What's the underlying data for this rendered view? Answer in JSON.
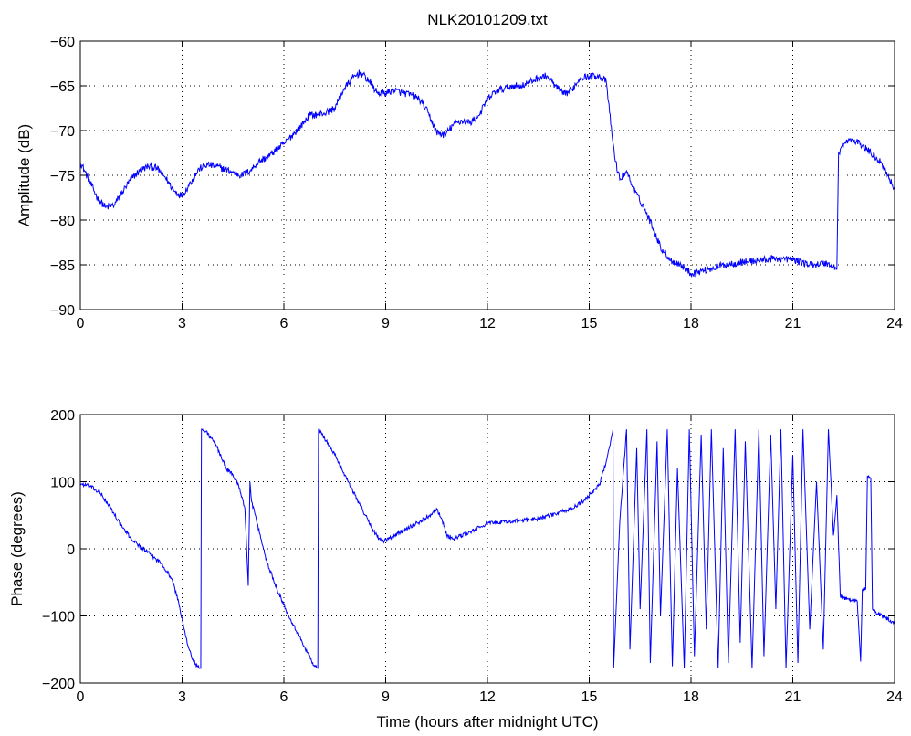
{
  "chart_data": [
    {
      "type": "line",
      "title": "NLK20101209.txt",
      "xlabel": "",
      "ylabel": "Amplitude (dB)",
      "xlim": [
        0,
        24
      ],
      "ylim": [
        -90,
        -60
      ],
      "xticks": [
        "0",
        "3",
        "6",
        "9",
        "12",
        "15",
        "18",
        "21",
        "24"
      ],
      "yticks": [
        "−90",
        "−85",
        "−80",
        "−75",
        "−70",
        "−65",
        "−60"
      ],
      "grid": true,
      "color": "#0000ff",
      "noise": 0.4,
      "points": [
        [
          0,
          -73.5
        ],
        [
          0.25,
          -75.5
        ],
        [
          0.5,
          -77.5
        ],
        [
          0.75,
          -78.6
        ],
        [
          1.0,
          -78.3
        ],
        [
          1.25,
          -76.8
        ],
        [
          1.5,
          -75.4
        ],
        [
          1.75,
          -74.5
        ],
        [
          2.0,
          -74.0
        ],
        [
          2.25,
          -74.2
        ],
        [
          2.5,
          -75.2
        ],
        [
          2.75,
          -76.7
        ],
        [
          3.0,
          -77.3
        ],
        [
          3.25,
          -75.8
        ],
        [
          3.5,
          -74.3
        ],
        [
          3.75,
          -73.8
        ],
        [
          4.0,
          -74.0
        ],
        [
          4.25,
          -74.3
        ],
        [
          4.5,
          -74.7
        ],
        [
          4.75,
          -75.0
        ],
        [
          5.0,
          -74.5
        ],
        [
          5.25,
          -73.5
        ],
        [
          5.5,
          -73.0
        ],
        [
          6.0,
          -71.5
        ],
        [
          6.5,
          -69.5
        ],
        [
          6.75,
          -68.3
        ],
        [
          7.0,
          -68.2
        ],
        [
          7.25,
          -68.0
        ],
        [
          7.5,
          -67.5
        ],
        [
          7.75,
          -65.5
        ],
        [
          8.0,
          -64.2
        ],
        [
          8.25,
          -63.5
        ],
        [
          8.5,
          -64.4
        ],
        [
          8.75,
          -65.8
        ],
        [
          9.0,
          -65.8
        ],
        [
          9.25,
          -65.5
        ],
        [
          9.5,
          -65.8
        ],
        [
          9.75,
          -66.0
        ],
        [
          10.0,
          -66.5
        ],
        [
          10.25,
          -68.0
        ],
        [
          10.5,
          -70.2
        ],
        [
          10.75,
          -70.5
        ],
        [
          11.0,
          -69.3
        ],
        [
          11.25,
          -68.9
        ],
        [
          11.5,
          -69.1
        ],
        [
          11.75,
          -68.3
        ],
        [
          12.0,
          -66.5
        ],
        [
          12.25,
          -65.6
        ],
        [
          12.5,
          -65.3
        ],
        [
          12.75,
          -65.0
        ],
        [
          13.0,
          -65.0
        ],
        [
          13.25,
          -64.6
        ],
        [
          13.5,
          -64.1
        ],
        [
          13.75,
          -63.9
        ],
        [
          14.0,
          -65.0
        ],
        [
          14.25,
          -66.0
        ],
        [
          14.5,
          -65.4
        ],
        [
          14.75,
          -64.0
        ],
        [
          15.0,
          -64.0
        ],
        [
          15.25,
          -63.8
        ],
        [
          15.5,
          -64.5
        ],
        [
          15.6,
          -68.0
        ],
        [
          15.75,
          -73.0
        ],
        [
          15.9,
          -75.5
        ],
        [
          16.1,
          -74.5
        ],
        [
          16.3,
          -76.5
        ],
        [
          16.6,
          -78.5
        ],
        [
          16.9,
          -81.0
        ],
        [
          17.1,
          -83.0
        ],
        [
          17.4,
          -84.5
        ],
        [
          17.7,
          -85.0
        ],
        [
          18.0,
          -86.0
        ],
        [
          18.5,
          -85.5
        ],
        [
          19.0,
          -85.0
        ],
        [
          19.5,
          -84.7
        ],
        [
          20.0,
          -84.5
        ],
        [
          20.5,
          -84.3
        ],
        [
          21.0,
          -84.4
        ],
        [
          21.5,
          -85.0
        ],
        [
          22.0,
          -84.8
        ],
        [
          22.3,
          -85.5
        ],
        [
          22.35,
          -72.5
        ],
        [
          22.5,
          -71.5
        ],
        [
          22.7,
          -71.0
        ],
        [
          23.0,
          -71.5
        ],
        [
          23.3,
          -72.5
        ],
        [
          23.6,
          -73.5
        ],
        [
          23.8,
          -75.0
        ],
        [
          24.0,
          -76.5
        ]
      ]
    },
    {
      "type": "line",
      "title": "",
      "xlabel": "Time (hours after midnight UTC)",
      "ylabel": "Phase (degrees)",
      "xlim": [
        0,
        24
      ],
      "ylim": [
        -200,
        200
      ],
      "xticks": [
        "0",
        "3",
        "6",
        "9",
        "12",
        "15",
        "18",
        "21",
        "24"
      ],
      "yticks": [
        "−200",
        "−100",
        "0",
        "100",
        "200"
      ],
      "grid": true,
      "color": "#0000ff",
      "noise": 3,
      "points": [
        [
          0,
          97
        ],
        [
          0.3,
          93
        ],
        [
          0.6,
          82
        ],
        [
          0.9,
          60
        ],
        [
          1.2,
          35
        ],
        [
          1.5,
          15
        ],
        [
          1.8,
          2
        ],
        [
          2.1,
          -10
        ],
        [
          2.4,
          -22
        ],
        [
          2.7,
          -45
        ],
        [
          2.9,
          -80
        ],
        [
          3.1,
          -130
        ],
        [
          3.3,
          -165
        ],
        [
          3.5,
          -178
        ],
        [
          3.55,
          -178
        ],
        [
          3.57,
          178
        ],
        [
          3.7,
          175
        ],
        [
          4.0,
          155
        ],
        [
          4.3,
          120
        ],
        [
          4.5,
          110
        ],
        [
          4.7,
          90
        ],
        [
          4.85,
          60
        ],
        [
          4.95,
          -55
        ],
        [
          5.0,
          100
        ],
        [
          5.05,
          70
        ],
        [
          5.2,
          40
        ],
        [
          5.5,
          -20
        ],
        [
          5.8,
          -60
        ],
        [
          6.1,
          -95
        ],
        [
          6.4,
          -125
        ],
        [
          6.7,
          -155
        ],
        [
          6.9,
          -175
        ],
        [
          7.0,
          -178
        ],
        [
          7.02,
          178
        ],
        [
          7.2,
          165
        ],
        [
          7.5,
          140
        ],
        [
          7.8,
          110
        ],
        [
          8.1,
          80
        ],
        [
          8.4,
          50
        ],
        [
          8.7,
          22
        ],
        [
          8.9,
          10
        ],
        [
          9.2,
          18
        ],
        [
          9.6,
          30
        ],
        [
          10.0,
          40
        ],
        [
          10.3,
          50
        ],
        [
          10.5,
          60
        ],
        [
          10.65,
          45
        ],
        [
          10.8,
          20
        ],
        [
          11.0,
          15
        ],
        [
          11.5,
          25
        ],
        [
          12.0,
          38
        ],
        [
          12.5,
          40
        ],
        [
          13.0,
          42
        ],
        [
          13.5,
          45
        ],
        [
          14.0,
          52
        ],
        [
          14.5,
          60
        ],
        [
          14.8,
          70
        ],
        [
          15.0,
          80
        ],
        [
          15.3,
          95
        ],
        [
          15.5,
          130
        ],
        [
          15.7,
          178
        ],
        [
          15.72,
          -178
        ],
        [
          15.9,
          40
        ],
        [
          16.1,
          178
        ],
        [
          16.2,
          -150
        ],
        [
          16.4,
          150
        ],
        [
          16.5,
          -90
        ],
        [
          16.7,
          178
        ],
        [
          16.8,
          -170
        ],
        [
          17.0,
          160
        ],
        [
          17.1,
          -100
        ],
        [
          17.3,
          178
        ],
        [
          17.45,
          -175
        ],
        [
          17.6,
          120
        ],
        [
          17.8,
          -178
        ],
        [
          17.95,
          178
        ],
        [
          18.1,
          -160
        ],
        [
          18.3,
          170
        ],
        [
          18.45,
          -120
        ],
        [
          18.6,
          178
        ],
        [
          18.8,
          -178
        ],
        [
          18.95,
          150
        ],
        [
          19.1,
          -170
        ],
        [
          19.3,
          178
        ],
        [
          19.45,
          -140
        ],
        [
          19.6,
          160
        ],
        [
          19.8,
          -178
        ],
        [
          20.0,
          178
        ],
        [
          20.15,
          -160
        ],
        [
          20.35,
          170
        ],
        [
          20.5,
          -90
        ],
        [
          20.65,
          178
        ],
        [
          20.8,
          -178
        ],
        [
          21.0,
          140
        ],
        [
          21.15,
          -170
        ],
        [
          21.3,
          178
        ],
        [
          21.5,
          -120
        ],
        [
          21.7,
          100
        ],
        [
          21.9,
          -150
        ],
        [
          22.05,
          178
        ],
        [
          22.2,
          20
        ],
        [
          22.3,
          80
        ],
        [
          22.4,
          -70
        ],
        [
          22.6,
          -75
        ],
        [
          22.9,
          -78
        ],
        [
          23.0,
          -168
        ],
        [
          23.05,
          -60
        ],
        [
          23.15,
          -60
        ],
        [
          23.2,
          108
        ],
        [
          23.3,
          105
        ],
        [
          23.35,
          -90
        ],
        [
          23.5,
          -97
        ],
        [
          23.8,
          -105
        ],
        [
          24.0,
          -112
        ]
      ]
    }
  ]
}
